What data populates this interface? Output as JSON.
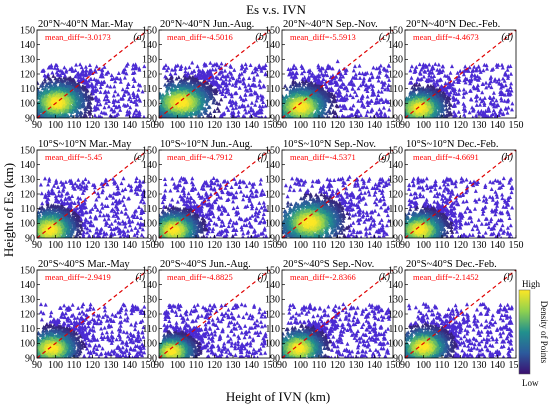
{
  "chart_data": {
    "type": "heatmap",
    "title": "Es v.s. IVN",
    "xlabel": "Height of IVN (km)",
    "ylabel": "Height of Es (km)",
    "xlim": [
      90,
      150
    ],
    "ylim": [
      90,
      150
    ],
    "xticks": [
      "90",
      "100",
      "110",
      "120",
      "130",
      "140",
      "150"
    ],
    "yticks": [
      "90",
      "100",
      "110",
      "120",
      "130",
      "140",
      "150"
    ],
    "reference_line": "y = x (red dashed)",
    "colorbar": {
      "label": "Density of Points",
      "high": "High",
      "low": "Low",
      "colors": [
        "#3b0f70",
        "#2c3e8c",
        "#21908d",
        "#3bbf73",
        "#a8d84a",
        "#fde725"
      ]
    },
    "marker": "triangle",
    "marker_color": "#4a2ad0",
    "panels": [
      {
        "title": "20°N~40°N Mar.-May",
        "label": "(a)",
        "mean_diff": "mean_diff=-3.0173",
        "center": [
          101,
          101
        ],
        "spread": [
          10,
          9
        ],
        "max_y": 127
      },
      {
        "title": "20°N~40°N Jun.-Aug.",
        "label": "(b)",
        "mean_diff": "mean_diff=-4.5016",
        "center": [
          102,
          101
        ],
        "spread": [
          11,
          9
        ],
        "max_y": 127
      },
      {
        "title": "20°N~40°N Sep.-Nov.",
        "label": "(c)",
        "mean_diff": "mean_diff=-5.5913",
        "center": [
          100,
          98
        ],
        "spread": [
          10,
          9
        ],
        "max_y": 127
      },
      {
        "title": "20°N~40°N Dec.-Feb.",
        "label": "(d)",
        "mean_diff": "mean_diff=-4.4673",
        "center": [
          98,
          97
        ],
        "spread": [
          9,
          8
        ],
        "max_y": 127
      },
      {
        "title": "10°S~10°N Mar.-May",
        "label": "(e)",
        "mean_diff": "mean_diff=-5.45",
        "center": [
          97,
          96
        ],
        "spread": [
          9,
          9
        ],
        "max_y": 131
      },
      {
        "title": "10°S~10°N Jun.-Aug.",
        "label": "(f)",
        "mean_diff": "mean_diff=-4.7912",
        "center": [
          98,
          96
        ],
        "spread": [
          9,
          8
        ],
        "max_y": 131
      },
      {
        "title": "10°S~10°N Sep.-Nov.",
        "label": "(g)",
        "mean_diff": "mean_diff=-4.5371",
        "center": [
          105,
          101
        ],
        "spread": [
          11,
          10
        ],
        "max_y": 131
      },
      {
        "title": "10°S~10°N Dec.-Feb.",
        "label": "(h)",
        "mean_diff": "mean_diff=-4.6691",
        "center": [
          98,
          96
        ],
        "spread": [
          9,
          8
        ],
        "max_y": 131
      },
      {
        "title": "20°S~40°S Mar.-May",
        "label": "(i)",
        "mean_diff": "mean_diff=-2.9419",
        "center": [
          98,
          97
        ],
        "spread": [
          9,
          8
        ],
        "max_y": 127
      },
      {
        "title": "20°S~40°S Jun.-Aug.",
        "label": "(j)",
        "mean_diff": "mean_diff=-4.8825",
        "center": [
          97,
          95
        ],
        "spread": [
          8,
          7
        ],
        "max_y": 127
      },
      {
        "title": "20°S~40°S Sep.-Nov.",
        "label": "(k)",
        "mean_diff": "mean_diff=-2.8366",
        "center": [
          99,
          97
        ],
        "spread": [
          9,
          8
        ],
        "max_y": 127
      },
      {
        "title": "20°S~40°S Dec.-Feb.",
        "label": "(l)",
        "mean_diff": "mean_diff=-2.1452",
        "center": [
          100,
          98
        ],
        "spread": [
          9,
          8
        ],
        "max_y": 127
      }
    ]
  }
}
